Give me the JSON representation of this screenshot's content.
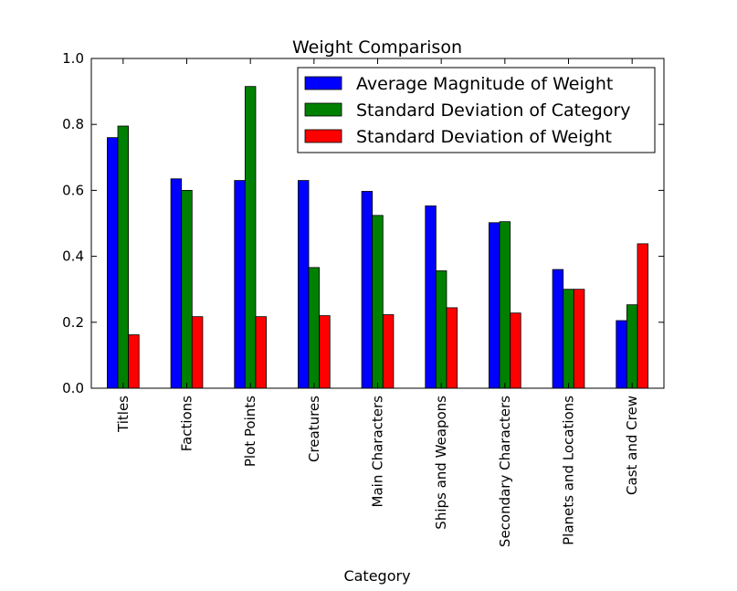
{
  "chart_data": {
    "type": "bar",
    "title": "Weight Comparison",
    "xlabel": "Category",
    "ylabel": "",
    "ylim": [
      0,
      1.0
    ],
    "yticks": [
      "0.0",
      "0.2",
      "0.4",
      "0.6",
      "0.8",
      "1.0"
    ],
    "grid": false,
    "legend_position": "top-right",
    "categories": [
      "Titles",
      "Factions",
      "Plot Points",
      "Creatures",
      "Main Characters",
      "Ships and Weapons",
      "Secondary Characters",
      "Planets and Locations",
      "Cast and Crew"
    ],
    "series": [
      {
        "name": "Average Magnitude of Weight",
        "color": "#0000ff",
        "values": [
          0.76,
          0.635,
          0.63,
          0.63,
          0.597,
          0.553,
          0.502,
          0.36,
          0.205
        ]
      },
      {
        "name": "Standard Deviation of Category",
        "color": "#008000",
        "values": [
          0.795,
          0.6,
          0.915,
          0.366,
          0.524,
          0.356,
          0.505,
          0.3,
          0.253
        ]
      },
      {
        "name": "Standard Deviation of Weight",
        "color": "#ff0000",
        "values": [
          0.162,
          0.217,
          0.217,
          0.22,
          0.223,
          0.244,
          0.228,
          0.3,
          0.438
        ]
      }
    ]
  }
}
